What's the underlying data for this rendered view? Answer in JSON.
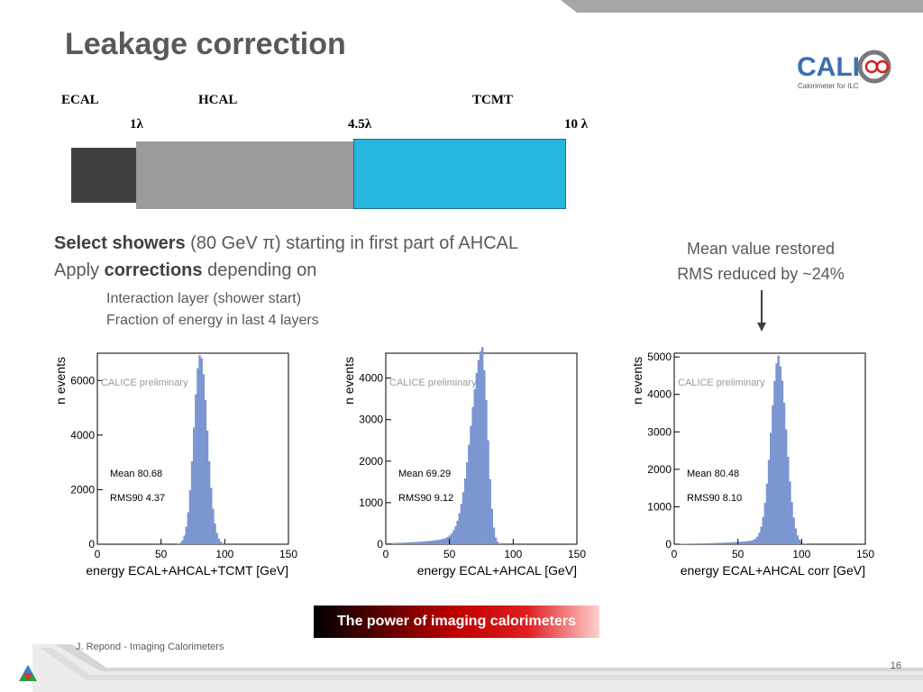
{
  "slide": {
    "title": "Leakage correction",
    "logo": {
      "name": "CALICE",
      "main_text": "CALI",
      "sub_text": "Calorimeter for ILC"
    },
    "detector": {
      "labels": [
        "ECAL",
        "HCAL",
        "TCMT"
      ],
      "depth_marks": [
        "1λ",
        "4.5λ",
        "10 λ"
      ],
      "colors": {
        "ecal": "#404040",
        "hcal": "#9a9a9a",
        "tcmt": "#26b5dd"
      }
    },
    "bullet1_bold": "Select showers",
    "bullet1_rest": " (80 GeV π) starting in first part of AHCAL",
    "bullet2_pre": "Apply ",
    "bullet2_bold": "corrections",
    "bullet2_post": " depending on",
    "sub_items": [
      "Interaction layer (shower start)",
      "Fraction of energy in last 4 layers"
    ],
    "note_line1": "Mean value restored",
    "note_line2": "RMS reduced by ~24%",
    "banner": "The power of imaging calorimeters",
    "footer": "J. Repond - Imaging Calorimeters",
    "page_number": "16"
  },
  "chart_data": [
    {
      "type": "bar",
      "xlabel": "energy ECAL+AHCAL+TCMT [GeV]",
      "ylabel": "n events",
      "xlim": [
        0,
        150
      ],
      "ylim": [
        0,
        7000
      ],
      "xticks": [
        0,
        50,
        100,
        150
      ],
      "yticks": [
        0,
        2000,
        4000,
        6000
      ],
      "annotation": "CALICE preliminary",
      "mean_label": "Mean 80.68",
      "rms_label": "RMS90 4.37",
      "color": "#7b96d0",
      "peak": 80.68,
      "peak_height": 6950,
      "sigma_left": 5,
      "sigma_right": 5.5,
      "tail": 0
    },
    {
      "type": "bar",
      "xlabel": "energy ECAL+AHCAL [GeV]",
      "ylabel": "n events",
      "xlim": [
        0,
        150
      ],
      "ylim": [
        0,
        4600
      ],
      "xticks": [
        0,
        50,
        100,
        150
      ],
      "yticks": [
        0,
        1000,
        2000,
        3000,
        4000
      ],
      "annotation": "CALICE preliminary",
      "mean_label": "Mean 69.29",
      "rms_label": "RMS90 9.12",
      "color": "#7b96d0",
      "peak": 76,
      "peak_height": 4400,
      "sigma_left": 9,
      "sigma_right": 4,
      "tail": 0.08
    },
    {
      "type": "bar",
      "xlabel": "energy ECAL+AHCAL corr [GeV]",
      "ylabel": "n events",
      "xlim": [
        0,
        150
      ],
      "ylim": [
        0,
        5100
      ],
      "xticks": [
        0,
        50,
        100,
        150
      ],
      "yticks": [
        0,
        1000,
        2000,
        3000,
        4000,
        5000
      ],
      "annotation": "CALICE preliminary",
      "mean_label": "Mean 80.48",
      "rms_label": "RMS90 8.10",
      "color": "#7b96d0",
      "peak": 82,
      "peak_height": 4850,
      "sigma_left": 6,
      "sigma_right": 6,
      "tail": 0.04
    }
  ]
}
